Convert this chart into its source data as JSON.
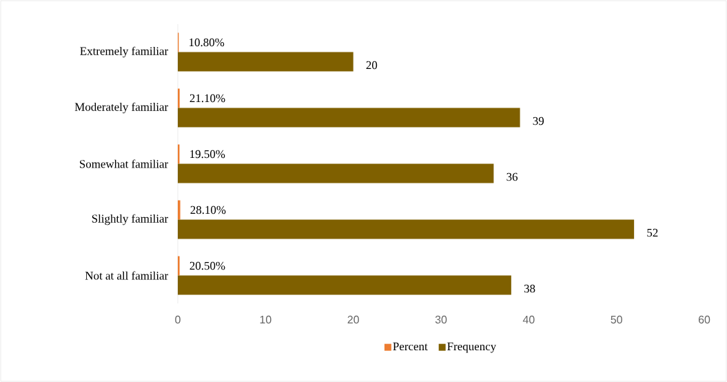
{
  "chart_data": {
    "type": "bar",
    "orientation": "horizontal",
    "categories": [
      "Extremely familiar",
      "Moderately familiar",
      "Somewhat familiar",
      "Slightly familiar",
      "Not at all familiar"
    ],
    "series": [
      {
        "name": "Percent",
        "color": "#ed7d31",
        "values": [
          0.108,
          0.211,
          0.195,
          0.281,
          0.205
        ],
        "value_labels": [
          "10.80%",
          "21.10%",
          "19.50%",
          "28.10%",
          "20.50%"
        ]
      },
      {
        "name": "Frequency",
        "color": "#7f6000",
        "values": [
          20,
          39,
          36,
          52,
          38
        ],
        "value_labels": [
          "20",
          "39",
          "36",
          "52",
          "38"
        ]
      }
    ],
    "xlim": [
      0,
      60
    ],
    "xticks": [
      0,
      10,
      20,
      30,
      40,
      50,
      60
    ],
    "legend": "bottom"
  }
}
